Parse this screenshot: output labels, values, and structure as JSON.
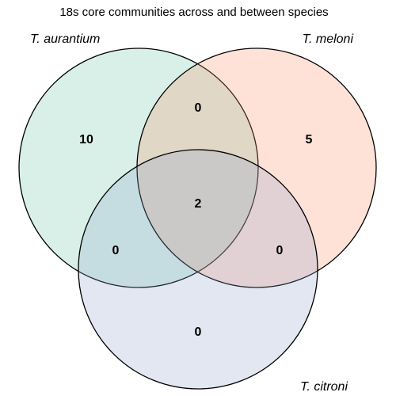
{
  "title": "18s core communities across and between species",
  "sets": [
    {
      "key": "a",
      "name": "T. aurantium",
      "color": "#66c2a5"
    },
    {
      "key": "b",
      "name": "T. meloni",
      "color": "#fc8d62"
    },
    {
      "key": "c",
      "name": "T. citroni",
      "color": "#8da0cb"
    }
  ],
  "fill_opacity": 0.25,
  "regions": {
    "a_only": "10",
    "b_only": "5",
    "c_only": "0",
    "a_b": "0",
    "a_c": "0",
    "b_c": "0",
    "a_b_c": "2"
  }
}
